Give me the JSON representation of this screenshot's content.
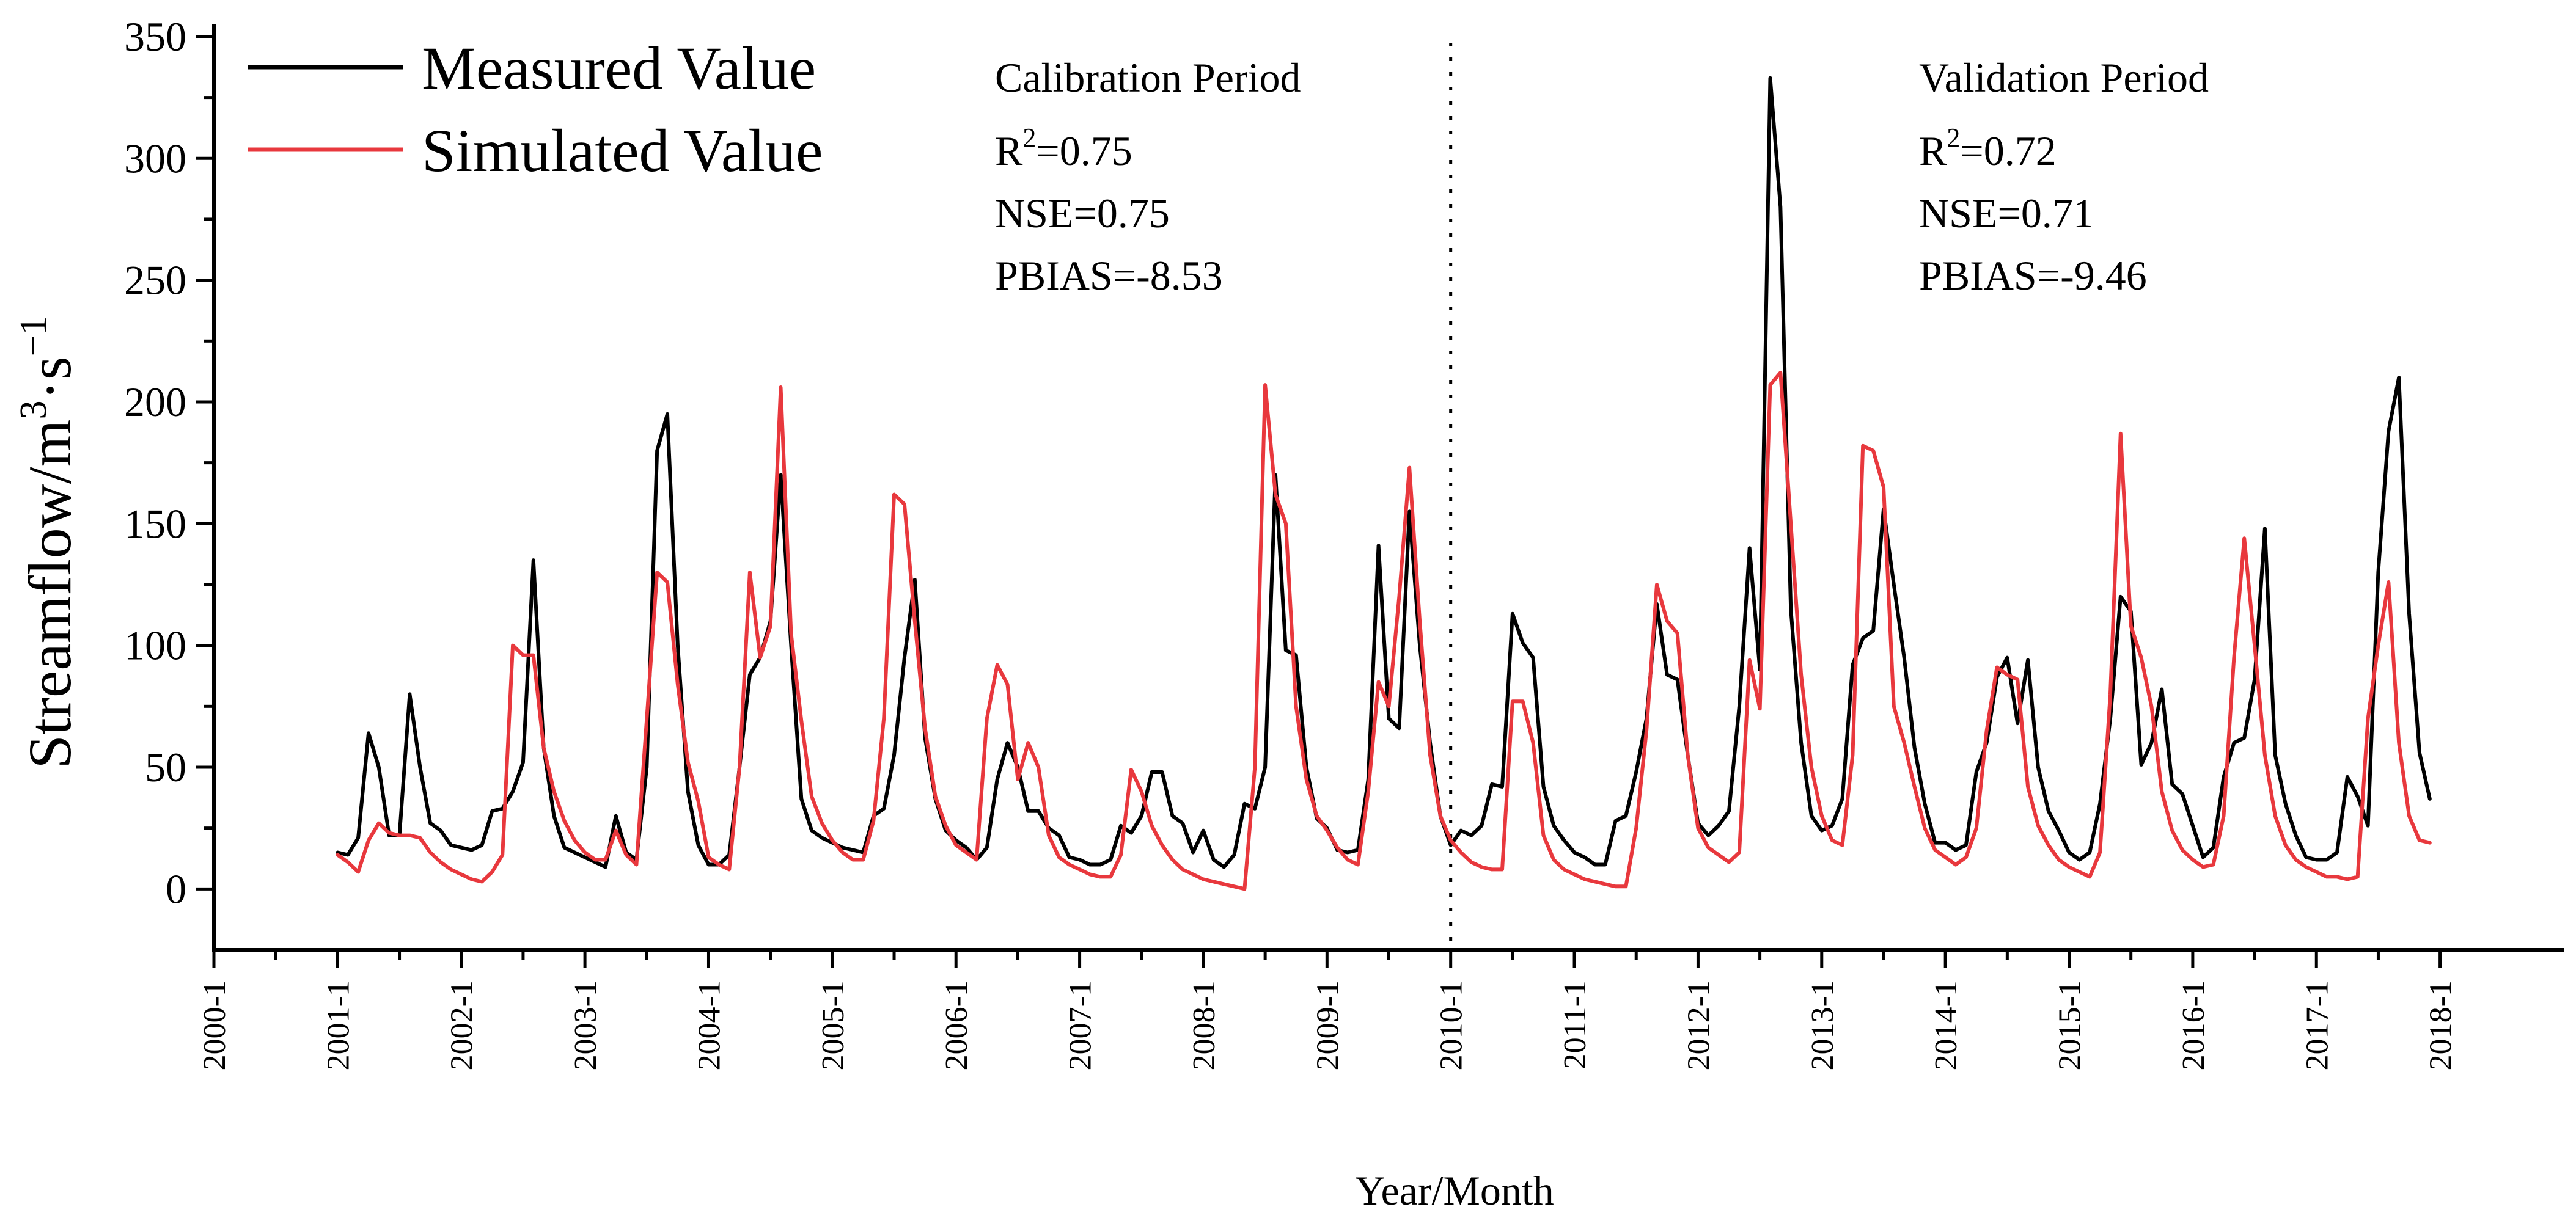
{
  "chart_data": {
    "type": "line",
    "title": "",
    "xlabel": "Year/Month",
    "ylabel": "Streamflow/m³·s⁻¹",
    "ylabel_parts": {
      "base": "Streamflow/m",
      "sup1": "3",
      "mid": "·s",
      "sup2": "−1"
    },
    "xlim": [
      0,
      228
    ],
    "ylim": [
      -25,
      355
    ],
    "x_ticks": [
      {
        "label": "2000-1",
        "x": 0
      },
      {
        "label": "2001-1",
        "x": 12
      },
      {
        "label": "2002-1",
        "x": 24
      },
      {
        "label": "2003-1",
        "x": 36
      },
      {
        "label": "2004-1",
        "x": 48
      },
      {
        "label": "2005-1",
        "x": 60
      },
      {
        "label": "2006-1",
        "x": 72
      },
      {
        "label": "2007-1",
        "x": 84
      },
      {
        "label": "2008-1",
        "x": 96
      },
      {
        "label": "2009-1",
        "x": 108
      },
      {
        "label": "2010-1",
        "x": 120
      },
      {
        "label": "2011-1",
        "x": 132
      },
      {
        "label": "2012-1",
        "x": 144
      },
      {
        "label": "2013-1",
        "x": 156
      },
      {
        "label": "2014-1",
        "x": 168
      },
      {
        "label": "2015-1",
        "x": 180
      },
      {
        "label": "2016-1",
        "x": 192
      },
      {
        "label": "2017-1",
        "x": 204
      },
      {
        "label": "2018-1",
        "x": 216
      }
    ],
    "y_ticks": [
      0,
      50,
      100,
      150,
      200,
      250,
      300,
      350
    ],
    "x_start_index": 12,
    "divider_x": 120,
    "series": [
      {
        "name": "Measured Value",
        "color": "#000000",
        "values": [
          15,
          14,
          21,
          64,
          50,
          22,
          22,
          80,
          50,
          27,
          24,
          18,
          17,
          16,
          18,
          32,
          33,
          40,
          52,
          135,
          58,
          30,
          17,
          15,
          13,
          11,
          9,
          30,
          15,
          12,
          50,
          180,
          195,
          100,
          40,
          18,
          10,
          10,
          14,
          50,
          88,
          95,
          110,
          170,
          100,
          37,
          24,
          21,
          19,
          17,
          16,
          15,
          30,
          33,
          55,
          95,
          127,
          62,
          37,
          24,
          20,
          17,
          12,
          17,
          45,
          60,
          50,
          32,
          32,
          25,
          22,
          13,
          12,
          10,
          10,
          12,
          26,
          23,
          30,
          48,
          48,
          30,
          27,
          15,
          24,
          12,
          9,
          14,
          35,
          33,
          50,
          170,
          98,
          96,
          50,
          29,
          25,
          16,
          15,
          16,
          45,
          141,
          70,
          66,
          155,
          100,
          60,
          30,
          18,
          24,
          22,
          26,
          43,
          42,
          113,
          101,
          95,
          42,
          26,
          20,
          15,
          13,
          10,
          10,
          28,
          30,
          48,
          70,
          117,
          88,
          86,
          55,
          27,
          22,
          26,
          32,
          75,
          140,
          90,
          333,
          280,
          115,
          60,
          30,
          24,
          26,
          37,
          92,
          103,
          106,
          156,
          125,
          95,
          58,
          35,
          19,
          19,
          16,
          18,
          48,
          60,
          87,
          95,
          68,
          94,
          50,
          32,
          24,
          15,
          12,
          15,
          35,
          70,
          120,
          114,
          51,
          60,
          82,
          43,
          39,
          26,
          13,
          17,
          46,
          60,
          62,
          86,
          148,
          55,
          35,
          22,
          13,
          12,
          12,
          15,
          46,
          38,
          26,
          130,
          188,
          210,
          113,
          56,
          37
        ]
      },
      {
        "name": "Simulated Value",
        "color": "#e8383d",
        "values": [
          14,
          11,
          7,
          20,
          27,
          23,
          22,
          22,
          21,
          15,
          11,
          8,
          6,
          4,
          3,
          7,
          14,
          100,
          96,
          96,
          58,
          40,
          28,
          20,
          15,
          12,
          12,
          24,
          14,
          10,
          70,
          130,
          126,
          84,
          52,
          36,
          13,
          10,
          8,
          50,
          130,
          95,
          108,
          206,
          105,
          69,
          38,
          27,
          20,
          15,
          12,
          12,
          28,
          70,
          162,
          158,
          110,
          66,
          38,
          26,
          18,
          15,
          12,
          70,
          92,
          84,
          45,
          60,
          50,
          22,
          13,
          10,
          8,
          6,
          5,
          5,
          14,
          49,
          40,
          26,
          18,
          12,
          8,
          6,
          4,
          3,
          2,
          1,
          0,
          50,
          207,
          162,
          150,
          75,
          45,
          30,
          24,
          17,
          12,
          10,
          40,
          85,
          75,
          120,
          173,
          110,
          55,
          30,
          20,
          15,
          11,
          9,
          8,
          8,
          77,
          77,
          60,
          22,
          12,
          8,
          6,
          4,
          3,
          2,
          1,
          1,
          25,
          65,
          125,
          110,
          105,
          55,
          25,
          17,
          14,
          11,
          15,
          94,
          74,
          207,
          212,
          150,
          88,
          50,
          30,
          20,
          18,
          55,
          182,
          180,
          165,
          75,
          60,
          42,
          25,
          16,
          13,
          10,
          13,
          25,
          65,
          91,
          88,
          86,
          42,
          26,
          18,
          12,
          9,
          7,
          5,
          15,
          80,
          187,
          108,
          95,
          75,
          40,
          24,
          16,
          12,
          9,
          10,
          30,
          95,
          144,
          100,
          55,
          30,
          18,
          12,
          9,
          7,
          5,
          5,
          4,
          5,
          70,
          100,
          126,
          60,
          30,
          20,
          19
        ]
      }
    ],
    "legend": {
      "position": "top-left",
      "entries": [
        "Measured Value",
        "Simulated Value"
      ]
    },
    "annotations": [
      {
        "id": "calibration",
        "heading": "Calibration Period",
        "r2_prefix": "R",
        "r2_sup": "2",
        "r2_value": "=0.75",
        "nse": "NSE=0.75",
        "pbias": "PBIAS=-8.53"
      },
      {
        "id": "validation",
        "heading": "Validation Period",
        "r2_prefix": "R",
        "r2_sup": "2",
        "r2_value": "=0.72",
        "nse": "NSE=0.71",
        "pbias": "PBIAS=-9.46"
      }
    ],
    "grid": false
  }
}
